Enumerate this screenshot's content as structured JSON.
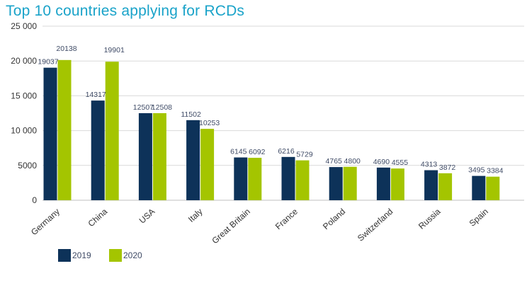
{
  "chart_data": {
    "type": "bar",
    "title": "Top 10 countries applying for RCDs",
    "categories": [
      "Germany",
      "China",
      "USA",
      "Italy",
      "Great Britain",
      "France",
      "Poland",
      "Switzerland",
      "Russia",
      "Spain"
    ],
    "series": [
      {
        "name": "2019",
        "color": "#0d3259",
        "values": [
          19037,
          14317,
          12507,
          11502,
          6145,
          6216,
          4765,
          4690,
          4313,
          3495
        ]
      },
      {
        "name": "2020",
        "color": "#a4c500",
        "values": [
          20138,
          19901,
          12508,
          10253,
          6092,
          5729,
          4800,
          4555,
          3872,
          3384
        ]
      }
    ],
    "yticks": [
      "0",
      "5000",
      "10 000",
      "15 000",
      "20 000",
      "25 000"
    ],
    "ylim": [
      0,
      25000
    ],
    "grid": true,
    "legend_position": "bottom-left",
    "xlabel": "",
    "ylabel": ""
  },
  "colors": {
    "title": "#1aa3c9",
    "grid": "#d9d9d9"
  }
}
